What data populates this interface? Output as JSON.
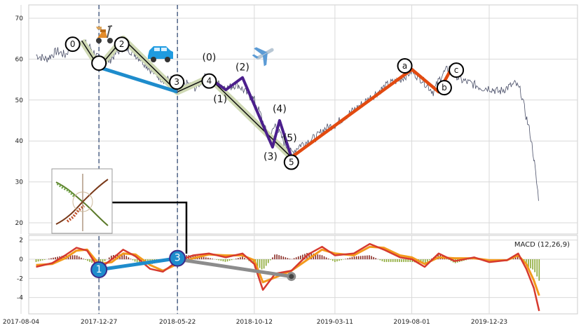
{
  "chart_data": [
    {
      "type": "line",
      "panel": "price",
      "title": "",
      "xlabel": "",
      "ylabel": "",
      "ylim": [
        17,
        73
      ],
      "yticks": [
        "20",
        "30",
        "40",
        "50",
        "60",
        "70"
      ],
      "xticks": [
        "2017-08-04",
        "2017-12-27",
        "2018-05-22",
        "2018-10-12",
        "2019-03-11",
        "2019-08-01",
        "2019-12-23"
      ],
      "grid": true,
      "price_series": [
        {
          "date": "2017-09-01",
          "value": 61
        },
        {
          "date": "2017-09-20",
          "value": 60
        },
        {
          "date": "2017-10-10",
          "value": 62
        },
        {
          "date": "2017-10-25",
          "value": 61
        },
        {
          "date": "2017-11-10",
          "value": 64
        },
        {
          "date": "2017-11-25",
          "value": 64.5
        },
        {
          "date": "2017-12-10",
          "value": 63
        },
        {
          "date": "2017-12-27",
          "value": 60
        },
        {
          "date": "2018-01-10",
          "value": 59
        },
        {
          "date": "2018-01-25",
          "value": 61
        },
        {
          "date": "2018-02-10",
          "value": 63
        },
        {
          "date": "2018-02-25",
          "value": 62
        },
        {
          "date": "2018-03-15",
          "value": 60
        },
        {
          "date": "2018-04-05",
          "value": 57
        },
        {
          "date": "2018-04-25",
          "value": 55
        },
        {
          "date": "2018-05-10",
          "value": 55
        },
        {
          "date": "2018-05-22",
          "value": 53
        },
        {
          "date": "2018-06-10",
          "value": 54
        },
        {
          "date": "2018-06-25",
          "value": 53
        },
        {
          "date": "2018-07-15",
          "value": 56
        },
        {
          "date": "2018-08-05",
          "value": 54
        },
        {
          "date": "2018-08-25",
          "value": 53
        },
        {
          "date": "2018-09-10",
          "value": 54
        },
        {
          "date": "2018-09-25",
          "value": 52
        },
        {
          "date": "2018-10-12",
          "value": 50
        },
        {
          "date": "2018-10-25",
          "value": 46
        },
        {
          "date": "2018-11-08",
          "value": 40
        },
        {
          "date": "2018-11-20",
          "value": 44
        },
        {
          "date": "2018-12-05",
          "value": 40
        },
        {
          "date": "2018-12-20",
          "value": 37
        },
        {
          "date": "2019-01-05",
          "value": 39
        },
        {
          "date": "2019-01-20",
          "value": 40
        },
        {
          "date": "2019-02-05",
          "value": 41
        },
        {
          "date": "2019-02-20",
          "value": 43
        },
        {
          "date": "2019-03-11",
          "value": 44
        },
        {
          "date": "2019-03-30",
          "value": 46
        },
        {
          "date": "2019-04-20",
          "value": 48
        },
        {
          "date": "2019-05-10",
          "value": 50
        },
        {
          "date": "2019-05-30",
          "value": 52
        },
        {
          "date": "2019-06-20",
          "value": 54
        },
        {
          "date": "2019-07-10",
          "value": 55
        },
        {
          "date": "2019-08-01",
          "value": 57
        },
        {
          "date": "2019-08-20",
          "value": 55
        },
        {
          "date": "2019-09-10",
          "value": 52
        },
        {
          "date": "2019-09-25",
          "value": 56
        },
        {
          "date": "2019-10-10",
          "value": 58
        },
        {
          "date": "2019-10-30",
          "value": 55
        },
        {
          "date": "2019-11-20",
          "value": 54
        },
        {
          "date": "2019-12-10",
          "value": 53
        },
        {
          "date": "2019-12-23",
          "value": 53
        },
        {
          "date": "2020-01-10",
          "value": 52
        },
        {
          "date": "2020-01-25",
          "value": 53
        },
        {
          "date": "2020-02-10",
          "value": 54
        },
        {
          "date": "2020-02-20",
          "value": 52
        },
        {
          "date": "2020-02-28",
          "value": 47
        },
        {
          "date": "2020-03-08",
          "value": 42
        },
        {
          "date": "2020-03-15",
          "value": 36
        },
        {
          "date": "2020-03-20",
          "value": 30
        },
        {
          "date": "2020-03-25",
          "value": 25
        }
      ],
      "wave_primary": [
        {
          "label": "0",
          "date": "2017-11-25",
          "value": 64.5
        },
        {
          "label": "",
          "date": "2017-12-27",
          "value": 58
        },
        {
          "label": "2",
          "date": "2018-02-10",
          "value": 65
        },
        {
          "label": "3",
          "date": "2018-05-22",
          "value": 52
        },
        {
          "label": "4",
          "date": "2018-07-20",
          "value": 55.5
        },
        {
          "label": "5",
          "date": "2018-12-20",
          "value": 36
        }
      ],
      "wave_sub": [
        {
          "label": "(0)",
          "date": "2018-07-20",
          "value": 55.5
        },
        {
          "label": "(1)",
          "date": "2018-08-20",
          "value": 52.5
        },
        {
          "label": "(2)",
          "date": "2018-09-20",
          "value": 55.5
        },
        {
          "label": "(3)",
          "date": "2018-11-15",
          "value": 38.5
        },
        {
          "label": "(4)",
          "date": "2018-11-28",
          "value": 45
        },
        {
          "label": "(5)",
          "date": "2018-12-20",
          "value": 36
        }
      ],
      "trend_blue": [
        {
          "date": "2017-12-27",
          "value": 58
        },
        {
          "date": "2018-05-22",
          "value": 52
        }
      ],
      "trend_abc": [
        {
          "label": "",
          "date": "2018-12-20",
          "value": 36
        },
        {
          "label": "a",
          "date": "2019-08-01",
          "value": 57.5
        },
        {
          "label": "b",
          "date": "2019-09-20",
          "value": 52
        },
        {
          "label": "c",
          "date": "2019-10-15",
          "value": 58
        }
      ],
      "vertical_markers": [
        "2017-12-27",
        "2018-05-22"
      ]
    },
    {
      "type": "line",
      "panel": "macd",
      "title": "",
      "legend": "MACD (12,26,9)",
      "legend_placement": "top-right",
      "ylim": [
        -5.6,
        2.4
      ],
      "yticks": [
        "2",
        "0",
        "-2",
        "-4"
      ],
      "grid": true,
      "macd": [
        {
          "date": "2017-09-01",
          "value": -0.8
        },
        {
          "date": "2017-10-01",
          "value": -0.4
        },
        {
          "date": "2017-10-25",
          "value": 0.4
        },
        {
          "date": "2017-11-15",
          "value": 1.2
        },
        {
          "date": "2017-12-05",
          "value": 0.9
        },
        {
          "date": "2017-12-27",
          "value": -1.0
        },
        {
          "date": "2018-01-20",
          "value": 0.0
        },
        {
          "date": "2018-02-10",
          "value": 1.0
        },
        {
          "date": "2018-03-05",
          "value": 0.3
        },
        {
          "date": "2018-04-01",
          "value": -1.0
        },
        {
          "date": "2018-04-25",
          "value": -1.3
        },
        {
          "date": "2018-05-22",
          "value": -0.2
        },
        {
          "date": "2018-06-20",
          "value": 0.4
        },
        {
          "date": "2018-07-20",
          "value": 0.6
        },
        {
          "date": "2018-08-20",
          "value": 0.2
        },
        {
          "date": "2018-09-20",
          "value": 0.6
        },
        {
          "date": "2018-10-12",
          "value": -0.5
        },
        {
          "date": "2018-10-28",
          "value": -3.2
        },
        {
          "date": "2018-11-20",
          "value": -1.5
        },
        {
          "date": "2018-12-20",
          "value": -1.2
        },
        {
          "date": "2019-01-20",
          "value": 0.5
        },
        {
          "date": "2019-02-15",
          "value": 1.3
        },
        {
          "date": "2019-03-11",
          "value": 0.4
        },
        {
          "date": "2019-04-15",
          "value": 0.6
        },
        {
          "date": "2019-05-15",
          "value": 1.6
        },
        {
          "date": "2019-06-10",
          "value": 1.0
        },
        {
          "date": "2019-07-10",
          "value": 0.2
        },
        {
          "date": "2019-08-01",
          "value": 0.0
        },
        {
          "date": "2019-08-25",
          "value": -0.8
        },
        {
          "date": "2019-09-20",
          "value": 0.6
        },
        {
          "date": "2019-10-20",
          "value": -0.2
        },
        {
          "date": "2019-11-25",
          "value": 0.2
        },
        {
          "date": "2019-12-23",
          "value": -0.3
        },
        {
          "date": "2020-01-25",
          "value": -0.1
        },
        {
          "date": "2020-02-15",
          "value": 0.6
        },
        {
          "date": "2020-03-01",
          "value": -1.0
        },
        {
          "date": "2020-03-15",
          "value": -3.0
        },
        {
          "date": "2020-03-25",
          "value": -5.4
        }
      ],
      "signal": [
        {
          "date": "2017-09-01",
          "value": -0.6
        },
        {
          "date": "2017-10-01",
          "value": -0.5
        },
        {
          "date": "2017-10-25",
          "value": 0.1
        },
        {
          "date": "2017-11-15",
          "value": 0.9
        },
        {
          "date": "2017-12-05",
          "value": 1.0
        },
        {
          "date": "2017-12-27",
          "value": -0.5
        },
        {
          "date": "2018-01-20",
          "value": -0.3
        },
        {
          "date": "2018-02-10",
          "value": 0.6
        },
        {
          "date": "2018-03-05",
          "value": 0.5
        },
        {
          "date": "2018-04-01",
          "value": -0.6
        },
        {
          "date": "2018-04-25",
          "value": -1.2
        },
        {
          "date": "2018-05-22",
          "value": -0.5
        },
        {
          "date": "2018-06-20",
          "value": 0.1
        },
        {
          "date": "2018-07-20",
          "value": 0.5
        },
        {
          "date": "2018-08-20",
          "value": 0.4
        },
        {
          "date": "2018-09-20",
          "value": 0.4
        },
        {
          "date": "2018-10-12",
          "value": -0.1
        },
        {
          "date": "2018-10-28",
          "value": -2.4
        },
        {
          "date": "2018-11-20",
          "value": -1.9
        },
        {
          "date": "2018-12-20",
          "value": -1.2
        },
        {
          "date": "2019-01-20",
          "value": 0.0
        },
        {
          "date": "2019-02-15",
          "value": 1.0
        },
        {
          "date": "2019-03-11",
          "value": 0.6
        },
        {
          "date": "2019-04-15",
          "value": 0.4
        },
        {
          "date": "2019-05-15",
          "value": 1.3
        },
        {
          "date": "2019-06-10",
          "value": 1.2
        },
        {
          "date": "2019-07-10",
          "value": 0.4
        },
        {
          "date": "2019-08-01",
          "value": 0.2
        },
        {
          "date": "2019-08-25",
          "value": -0.5
        },
        {
          "date": "2019-09-20",
          "value": 0.2
        },
        {
          "date": "2019-10-20",
          "value": 0.1
        },
        {
          "date": "2019-11-25",
          "value": 0.1
        },
        {
          "date": "2019-12-23",
          "value": -0.1
        },
        {
          "date": "2020-01-25",
          "value": -0.1
        },
        {
          "date": "2020-02-15",
          "value": 0.4
        },
        {
          "date": "2020-03-01",
          "value": -0.5
        },
        {
          "date": "2020-03-15",
          "value": -2.2
        },
        {
          "date": "2020-03-25",
          "value": -3.8
        }
      ],
      "trend_blue": [
        {
          "label": "1",
          "date": "2017-12-27",
          "value": -1.1
        },
        {
          "label": "3",
          "date": "2018-05-22",
          "value": 0.1
        }
      ],
      "trend_grey": [
        {
          "date": "2018-05-22",
          "value": 0.0
        },
        {
          "date": "2018-12-20",
          "value": -1.8
        }
      ]
    }
  ],
  "colors": {
    "price_line": "#4a4f68",
    "wave_fill": "#cfd9b4",
    "wave_line": "#111111",
    "trend_blue": "#1e8ccc",
    "sub_wave": "#4b1f8c",
    "trend_orange": "#e24a10",
    "macd_line": "#d63a2f",
    "signal_line": "#f39a1c",
    "hist_pos": "#8a2b24",
    "hist_neg": "#8aa832",
    "grey_trend": "#8c8c8c",
    "marker_dash": "#4f6387"
  },
  "icons": [
    "scooter-icon",
    "car-icon",
    "airplane-icon",
    "growth-chart-thumbnail"
  ]
}
